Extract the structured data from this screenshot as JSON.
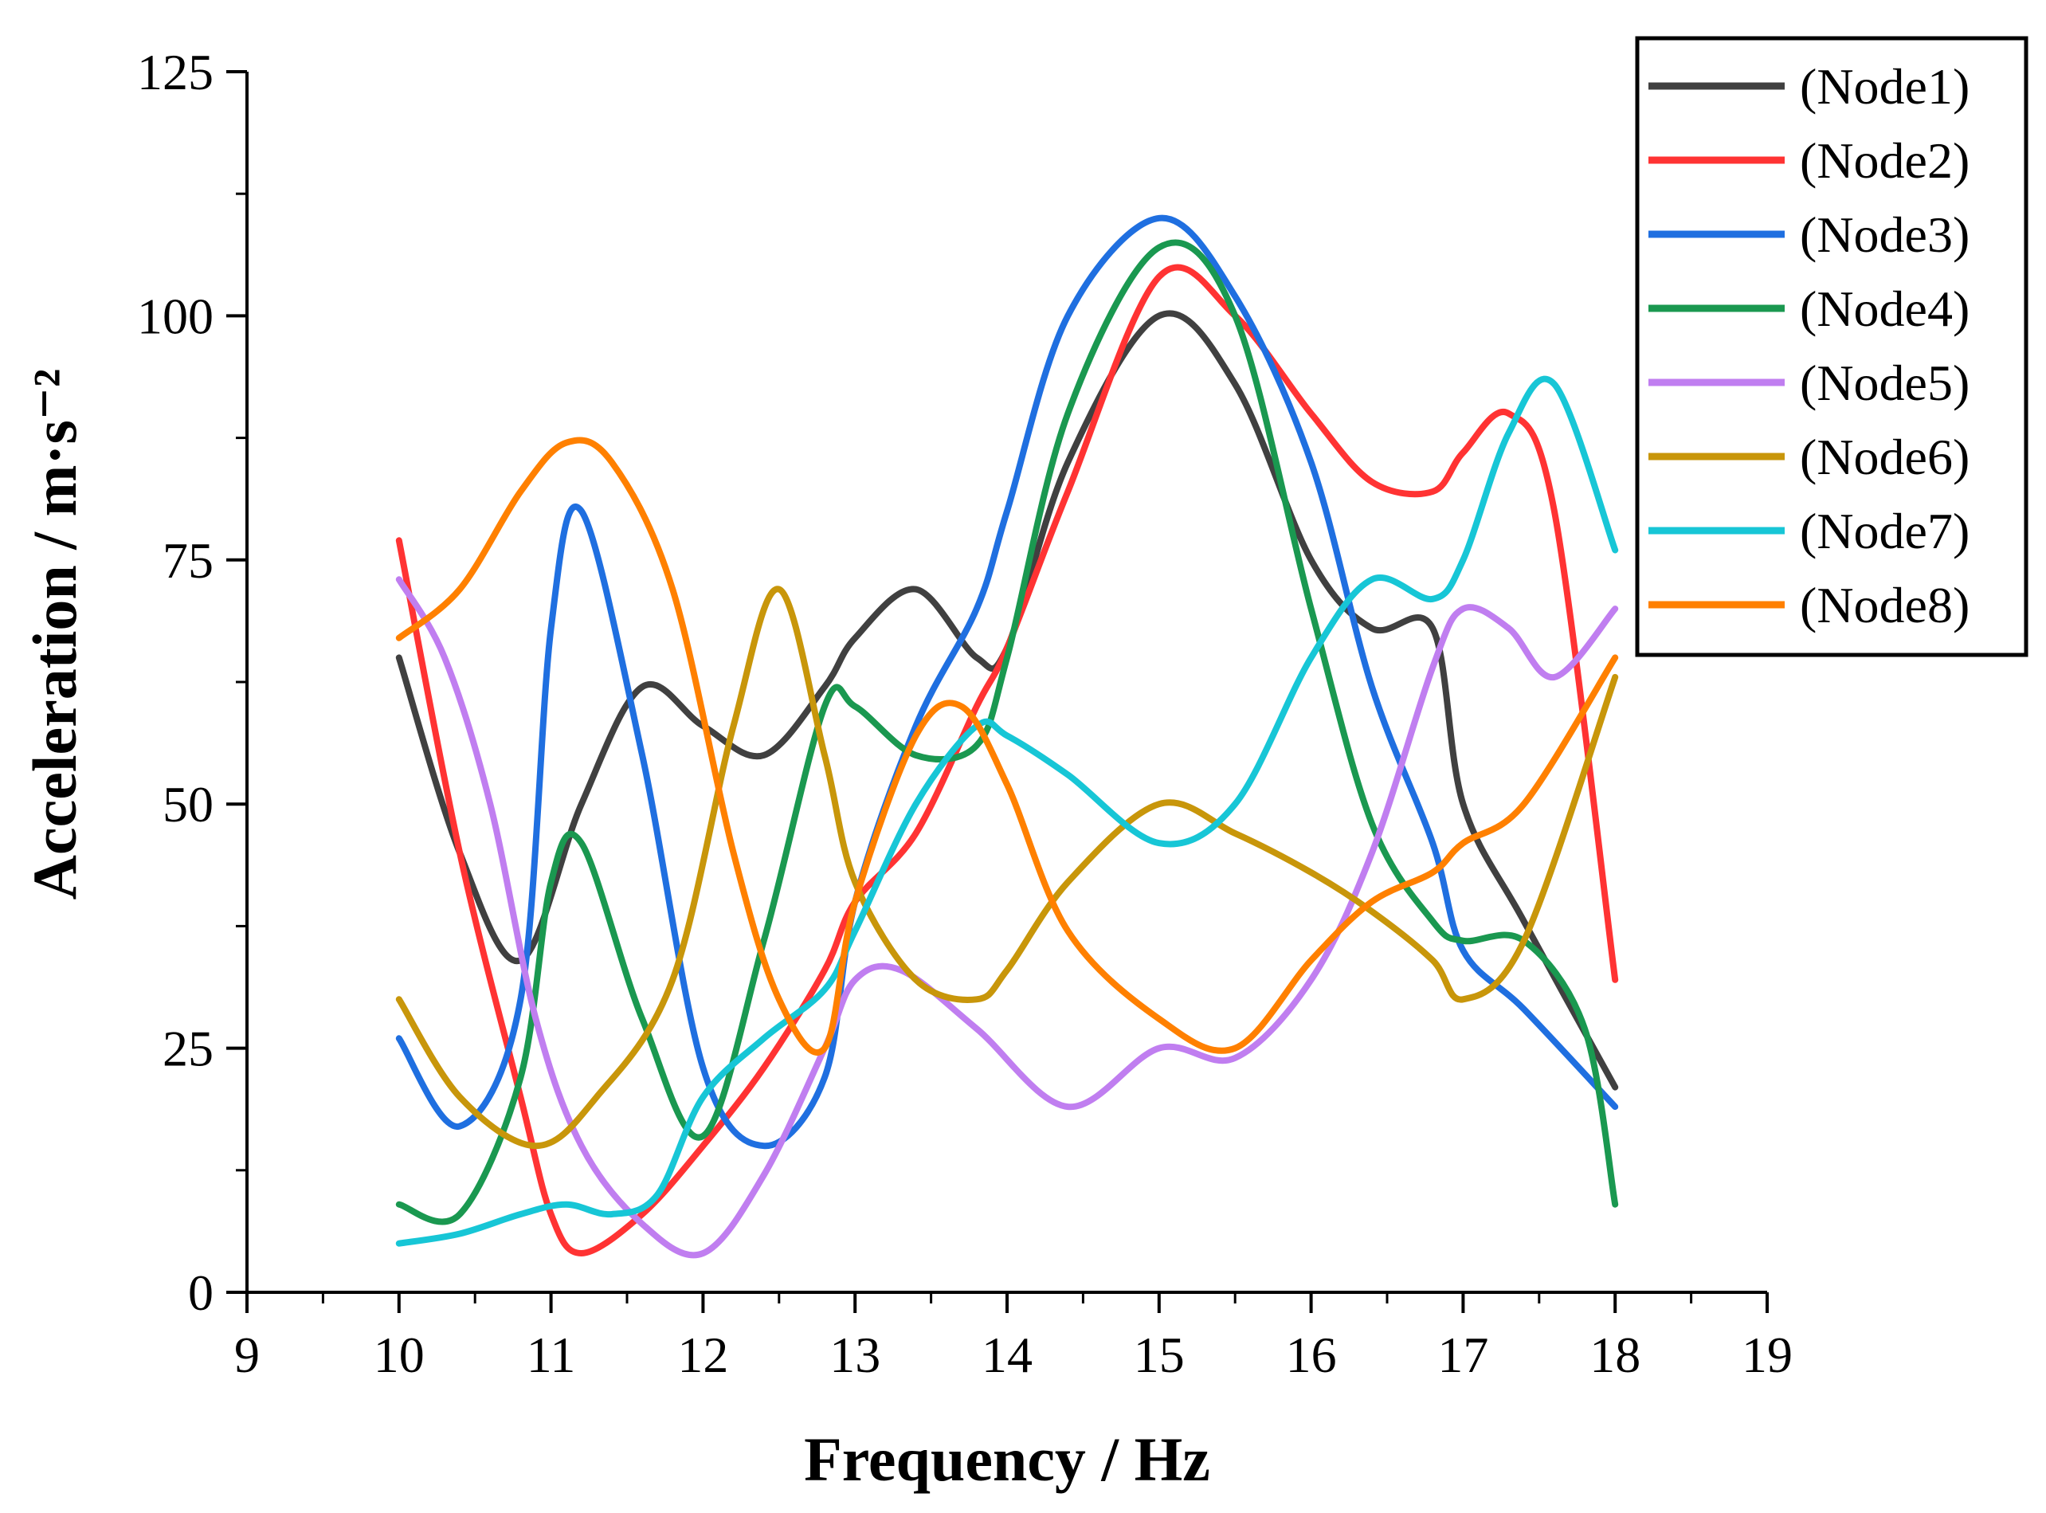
{
  "chart_data": {
    "type": "line",
    "title": "",
    "xlabel": "Frequency / Hz",
    "ylabel": "Acceleration / m·s⁻²",
    "xlim": [
      9,
      19
    ],
    "ylim": [
      0,
      125
    ],
    "xticks": [
      "9",
      "10",
      "11",
      "12",
      "13",
      "14",
      "15",
      "16",
      "17",
      "18",
      "19"
    ],
    "yticks": [
      "0",
      "25",
      "50",
      "75",
      "100",
      "125"
    ],
    "grid": false,
    "legend_position": "top-right",
    "series": [
      {
        "name": "(Node1)",
        "color": "#404040",
        "x": [
          10,
          10.4,
          10.8,
          11.2,
          11.6,
          12.0,
          12.4,
          12.8,
          13.0,
          13.4,
          13.8,
          14.0,
          14.4,
          15.0,
          15.5,
          16.0,
          16.4,
          16.8,
          17.0,
          17.4,
          18.0
        ],
        "y": [
          65,
          45,
          34,
          50,
          62,
          58,
          55,
          62,
          67,
          72,
          65,
          66,
          85,
          100,
          93,
          75,
          68,
          68,
          50,
          38,
          21
        ]
      },
      {
        "name": "(Node2)",
        "color": "#ff3333",
        "x": [
          10,
          10.4,
          10.8,
          11.0,
          11.2,
          11.6,
          12.0,
          12.4,
          12.8,
          13.0,
          13.4,
          13.8,
          14.0,
          14.4,
          15.0,
          15.5,
          16.0,
          16.4,
          16.8,
          17.0,
          17.3,
          17.6,
          18.0
        ],
        "y": [
          77,
          45,
          20,
          8,
          4,
          8,
          15,
          23,
          33,
          40,
          47,
          60,
          66,
          82,
          104,
          100,
          90,
          83,
          82,
          86,
          90,
          80,
          32
        ]
      },
      {
        "name": "(Node3)",
        "color": "#1f6fe0",
        "x": [
          10,
          10.4,
          10.8,
          11.0,
          11.2,
          11.6,
          12.0,
          12.4,
          12.8,
          13.0,
          13.4,
          13.8,
          14.0,
          14.4,
          15.0,
          15.5,
          16.0,
          16.4,
          16.8,
          17.0,
          17.4,
          18.0
        ],
        "y": [
          26,
          17,
          30,
          68,
          80,
          55,
          23,
          15,
          22,
          40,
          58,
          70,
          80,
          100,
          110,
          102,
          85,
          62,
          46,
          35,
          29,
          19
        ]
      },
      {
        "name": "(Node4)",
        "color": "#1a9850",
        "x": [
          10,
          10.4,
          10.8,
          11.0,
          11.2,
          11.6,
          12.0,
          12.4,
          12.8,
          13.0,
          13.4,
          13.8,
          14.0,
          14.4,
          15.0,
          15.5,
          16.0,
          16.4,
          16.8,
          17.0,
          17.4,
          17.8,
          18.0
        ],
        "y": [
          9,
          8,
          22,
          42,
          46,
          28,
          16,
          36,
          60,
          60,
          55,
          56,
          65,
          90,
          107,
          100,
          70,
          48,
          38,
          36,
          36,
          27,
          9
        ]
      },
      {
        "name": "(Node5)",
        "color": "#c07ef0",
        "x": [
          10,
          10.3,
          10.6,
          10.9,
          11.2,
          11.6,
          12.0,
          12.4,
          12.8,
          13.0,
          13.3,
          13.8,
          14.4,
          15.0,
          15.5,
          16.0,
          16.4,
          16.8,
          17.0,
          17.3,
          17.6,
          18.0
        ],
        "y": [
          73,
          65,
          50,
          28,
          15,
          7,
          4,
          12,
          25,
          32,
          33,
          27,
          19,
          25,
          24,
          32,
          45,
          64,
          70,
          68,
          63,
          70
        ]
      },
      {
        "name": "(Node6)",
        "color": "#c8960a",
        "x": [
          10,
          10.4,
          10.9,
          11.3,
          11.8,
          12.2,
          12.5,
          12.8,
          13.0,
          13.4,
          13.8,
          14.0,
          14.4,
          15.0,
          15.5,
          16.0,
          16.4,
          16.8,
          17.0,
          17.4,
          18.0
        ],
        "y": [
          30,
          20,
          15,
          20,
          32,
          58,
          72,
          55,
          42,
          32,
          30,
          33,
          42,
          50,
          47,
          43,
          39,
          34,
          30,
          36,
          63
        ]
      },
      {
        "name": "(Node7)",
        "color": "#17c6d6",
        "x": [
          10,
          10.4,
          10.8,
          11.1,
          11.4,
          11.7,
          12.0,
          12.4,
          12.8,
          13.0,
          13.4,
          13.8,
          14.0,
          14.4,
          15.0,
          15.5,
          16.0,
          16.4,
          16.8,
          17.0,
          17.3,
          17.6,
          18.0
        ],
        "y": [
          5,
          6,
          8,
          9,
          8,
          10,
          20,
          26,
          31,
          37,
          50,
          58,
          57,
          53,
          46,
          50,
          65,
          73,
          71,
          75,
          88,
          93,
          76
        ]
      },
      {
        "name": "(Node8)",
        "color": "#ff8000",
        "x": [
          10,
          10.4,
          10.8,
          11.1,
          11.4,
          11.8,
          12.2,
          12.5,
          12.8,
          13.0,
          13.4,
          13.7,
          14.0,
          14.4,
          15.0,
          15.5,
          16.0,
          16.4,
          16.8,
          17.0,
          17.4,
          18.0
        ],
        "y": [
          67,
          72,
          82,
          87,
          85,
          72,
          45,
          30,
          25,
          40,
          57,
          60,
          52,
          37,
          28,
          25,
          34,
          40,
          43,
          46,
          50,
          65
        ]
      }
    ]
  }
}
